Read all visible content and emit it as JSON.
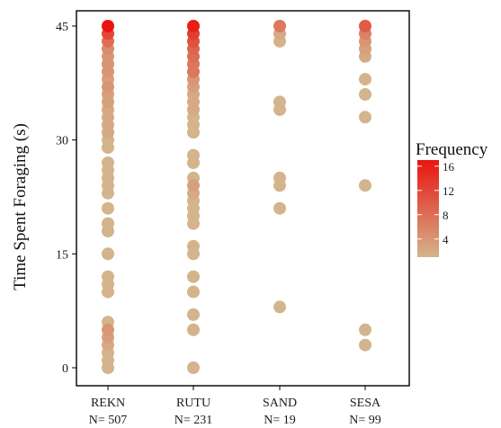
{
  "chart_data": {
    "type": "scatter",
    "ylabel": "Time Spent Foraging (s)",
    "ylim": [
      0,
      45
    ],
    "y_ticks": [
      0,
      15,
      30,
      45
    ],
    "categories": [
      "REKN",
      "RUTU",
      "SAND",
      "SESA"
    ],
    "sample_sizes": [
      "N= 507",
      "N= 231",
      "N= 19",
      "N= 99"
    ],
    "legend": {
      "title": "Frequency",
      "ticks": [
        4,
        8,
        12,
        16
      ],
      "range": [
        1,
        17
      ],
      "color_low": "#d4b48c",
      "color_high": "#e8150f"
    },
    "grid": false,
    "points": [
      {
        "category": "REKN",
        "y": [
          0,
          1,
          2,
          3,
          4,
          5,
          6,
          10,
          11,
          12,
          15,
          18,
          19,
          21,
          23,
          24,
          25,
          26,
          27,
          29,
          30,
          31,
          32,
          33,
          34,
          35,
          36,
          37,
          38,
          39,
          40,
          41,
          42,
          43,
          44,
          45
        ],
        "freq": [
          1,
          1,
          1,
          2,
          3,
          4,
          1,
          1,
          1,
          1,
          1,
          1,
          1,
          1,
          1,
          1,
          1,
          1,
          1,
          1,
          1,
          2,
          2,
          2,
          2,
          3,
          3,
          4,
          3,
          4,
          4,
          4,
          5,
          8,
          12,
          17
        ]
      },
      {
        "category": "RUTU",
        "y": [
          0,
          5,
          7,
          10,
          12,
          15,
          16,
          19,
          20,
          21,
          22,
          23,
          24,
          25,
          27,
          28,
          31,
          32,
          33,
          34,
          35,
          36,
          37,
          38,
          39,
          40,
          41,
          42,
          43,
          44,
          45
        ],
        "freq": [
          1,
          1,
          1,
          1,
          1,
          1,
          1,
          1,
          1,
          1,
          1,
          2,
          3,
          1,
          1,
          1,
          1,
          1,
          1,
          2,
          2,
          2,
          3,
          4,
          7,
          7,
          8,
          9,
          11,
          13,
          16
        ]
      },
      {
        "category": "SAND",
        "y": [
          8,
          21,
          24,
          25,
          34,
          35,
          43,
          44,
          45
        ],
        "freq": [
          1,
          1,
          1,
          1,
          1,
          1,
          1,
          2,
          7
        ]
      },
      {
        "category": "SESA",
        "y": [
          3,
          5,
          24,
          33,
          36,
          38,
          41,
          42,
          43,
          44,
          45
        ],
        "freq": [
          1,
          1,
          1,
          1,
          1,
          1,
          2,
          3,
          4,
          6,
          10
        ]
      }
    ]
  }
}
